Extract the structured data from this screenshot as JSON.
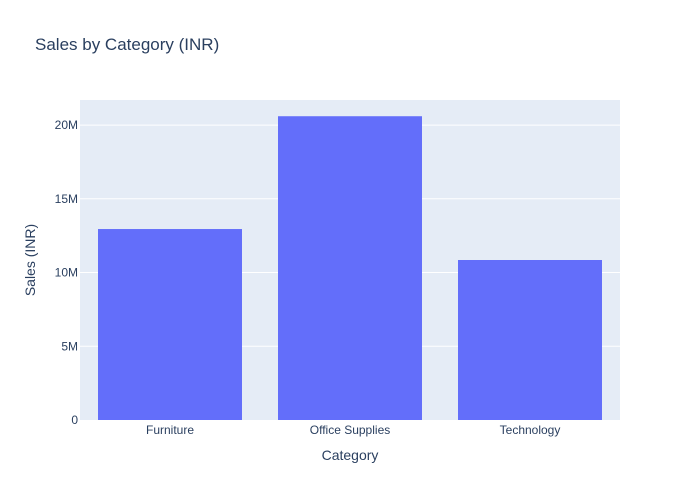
{
  "chart_data": {
    "type": "bar",
    "title": "Sales by Category (INR)",
    "xlabel": "Category",
    "ylabel": "Sales (INR)",
    "categories": [
      "Furniture",
      "Office Supplies",
      "Technology"
    ],
    "values": [
      12950000,
      20600000,
      10850000
    ],
    "ylim": [
      0,
      21700000
    ],
    "yticks": [
      0,
      5000000,
      10000000,
      15000000,
      20000000
    ],
    "ytick_labels": [
      "0",
      "5M",
      "10M",
      "15M",
      "20M"
    ],
    "grid": true,
    "legend": "none"
  },
  "colors": {
    "bar": "#636efa",
    "plot_background": "#e5ecf6",
    "gridline": "#ffffff",
    "text": "#2a3f5f"
  }
}
